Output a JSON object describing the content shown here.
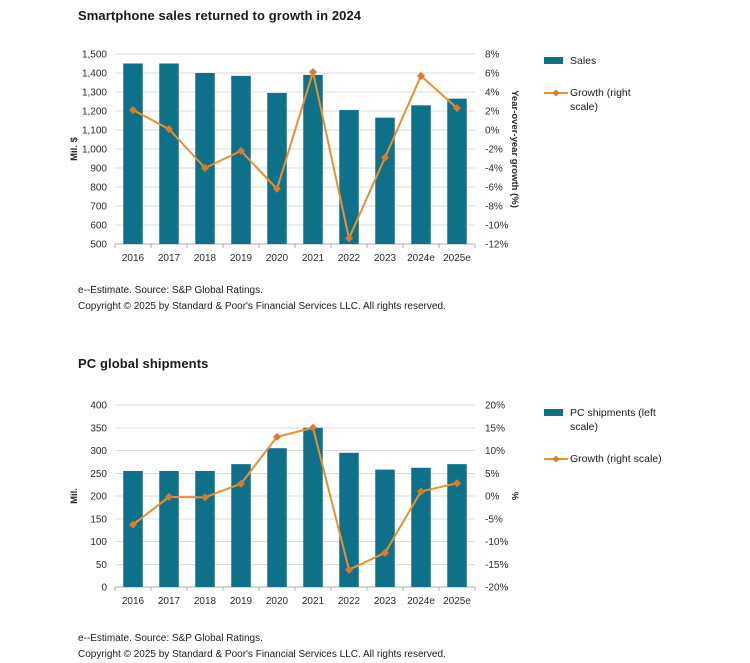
{
  "colors": {
    "bar": "#0F7189",
    "line": "#E9912F",
    "marker": "#DD7A28",
    "grid": "#DBDBDB",
    "axis": "#ADADAD",
    "tick_text": "#2B2B2B",
    "title_text": "#1A1A1A"
  },
  "chart_data": [
    {
      "type": "bar",
      "title": "Smartphone sales returned to growth in 2024",
      "categories": [
        "2016",
        "2017",
        "2018",
        "2019",
        "2020",
        "2021",
        "2022",
        "2023",
        "2024e",
        "2025e"
      ],
      "series": [
        {
          "name": "Sales",
          "type": "bar",
          "axis": "left",
          "values": [
            1450,
            1450,
            1400,
            1385,
            1295,
            1390,
            1205,
            1165,
            1230,
            1265
          ]
        },
        {
          "name": "Growth (right scale)",
          "type": "line",
          "axis": "right",
          "values": [
            2.1,
            0.1,
            -4.0,
            -2.2,
            -6.2,
            6.1,
            -11.4,
            -2.9,
            5.7,
            2.3
          ]
        }
      ],
      "left_axis": {
        "label": "Mil. $",
        "min": 500,
        "max": 1500,
        "step": 100
      },
      "right_axis": {
        "label": "Year-over-year growth (%)",
        "min": -12,
        "max": 8,
        "step": 2,
        "suffix": "%"
      },
      "grid": true,
      "legend_position": "right",
      "footnotes": [
        "e--Estimate. Source: S&P Global Ratings.",
        "Copyright © 2025 by Standard & Poor's Financial Services LLC. All rights reserved."
      ]
    },
    {
      "type": "bar",
      "title": "PC global shipments",
      "categories": [
        "2016",
        "2017",
        "2018",
        "2019",
        "2020",
        "2021",
        "2022",
        "2023",
        "2024e",
        "2025e"
      ],
      "series": [
        {
          "name": "PC shipments (left scale)",
          "type": "bar",
          "axis": "left",
          "values": [
            255,
            255,
            255,
            270,
            305,
            350,
            295,
            258,
            262,
            270
          ]
        },
        {
          "name": "Growth (right scale)",
          "type": "line",
          "axis": "right",
          "values": [
            -6.3,
            -0.2,
            -0.3,
            2.7,
            13.0,
            15.0,
            -16.2,
            -12.5,
            1.0,
            2.8
          ]
        }
      ],
      "left_axis": {
        "label": "Mil.",
        "min": 0,
        "max": 400,
        "step": 50
      },
      "right_axis": {
        "label": "%",
        "min": -20,
        "max": 20,
        "step": 5,
        "suffix": "%"
      },
      "grid": true,
      "legend_position": "right",
      "footnotes": [
        "e--Estimate. Source: S&P Global Ratings.",
        "Copyright © 2025 by Standard & Poor's Financial Services LLC. All rights reserved."
      ]
    }
  ]
}
